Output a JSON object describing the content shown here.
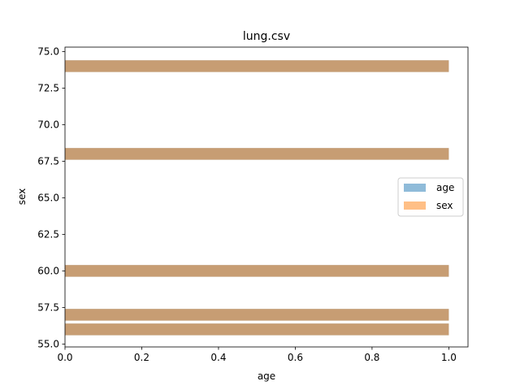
{
  "chart_data": {
    "type": "bar",
    "orientation": "horizontal",
    "title": "lung.csv",
    "xlabel": "age",
    "ylabel": "sex",
    "xlim": [
      0,
      1.05
    ],
    "ylim": [
      54.8,
      75.3
    ],
    "xticks": [
      "0.0",
      "0.2",
      "0.4",
      "0.6",
      "0.8",
      "1.0"
    ],
    "yticks": [
      "55.0",
      "57.5",
      "60.0",
      "62.5",
      "65.0",
      "67.5",
      "70.0",
      "72.5",
      "75.0"
    ],
    "bar_height": 0.8,
    "series": [
      {
        "name": "age",
        "color": "#1f77b4",
        "opacity": 0.5,
        "bars": [
          {
            "y": 74,
            "value": 1
          },
          {
            "y": 68,
            "value": 1
          },
          {
            "y": 60,
            "value": 1
          },
          {
            "y": 57,
            "value": 1
          },
          {
            "y": 56,
            "value": 1
          }
        ]
      },
      {
        "name": "sex",
        "color": "#ff7f0e",
        "opacity": 0.5,
        "bars": [
          {
            "y": 74,
            "value": 1
          },
          {
            "y": 68,
            "value": 1
          },
          {
            "y": 60,
            "value": 1
          },
          {
            "y": 57,
            "value": 1
          },
          {
            "y": 56,
            "value": 1
          }
        ]
      }
    ],
    "legend": {
      "position": "center-right"
    },
    "grid": false
  }
}
